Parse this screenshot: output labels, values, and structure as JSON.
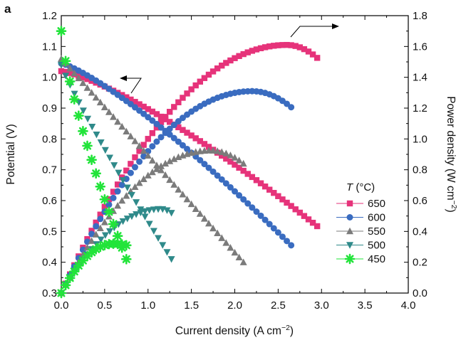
{
  "panel_label": "a",
  "chart_data": {
    "type": "scatter",
    "xlabel": "Current density (A cm−2)",
    "xlabel_base": "Current density (A cm",
    "xlabel_sup": "−2",
    "xlabel_close": ")",
    "ylabel": "Potential (V)",
    "y2label": "Power density (W cm−2)",
    "y2label_base": "Power density (W cm",
    "y2label_sup": "−2",
    "y2label_close": ")",
    "xlim": [
      0.0,
      4.0
    ],
    "ylim": [
      0.3,
      1.2
    ],
    "y2lim": [
      0.0,
      1.8
    ],
    "x_ticks": [
      "0.0",
      "0.5",
      "1.0",
      "1.5",
      "2.0",
      "2.5",
      "3.0",
      "3.5",
      "4.0"
    ],
    "y_ticks": [
      "0.3",
      "0.4",
      "0.5",
      "0.6",
      "0.7",
      "0.8",
      "0.9",
      "1.0",
      "1.1",
      "1.2"
    ],
    "y2_ticks": [
      "0.0",
      "0.2",
      "0.4",
      "0.6",
      "0.8",
      "1.0",
      "1.2",
      "1.4",
      "1.6",
      "1.8"
    ],
    "grid": false,
    "legend_title_var": "T",
    "legend_title_unit": " (°C)",
    "legend_position": "right",
    "series": [
      {
        "name": "650",
        "color": "#e6337a",
        "marker": "square",
        "iv": {
          "x_max": 2.95,
          "v_start": 1.02,
          "v_end": 0.517,
          "shape": 1.3
        },
        "power": {
          "x_max": 2.95,
          "p_end": 1.526,
          "peak_x": 2.6,
          "peak_p": 1.61
        }
      },
      {
        "name": "600",
        "color": "#3a6cc0",
        "marker": "circle",
        "iv": {
          "x_max": 2.65,
          "v_start": 1.045,
          "v_end": 0.455,
          "shape": 1.25
        },
        "power": {
          "x_max": 2.65,
          "p_end": 1.206,
          "peak_x": 2.2,
          "peak_p": 1.31
        }
      },
      {
        "name": "550",
        "color": "#7b7b7b",
        "marker": "triangle-up",
        "iv": {
          "x_max": 2.1,
          "v_start": 1.06,
          "v_end": 0.4,
          "shape": 1.0
        },
        "power": {
          "x_max": 2.1,
          "p_end": 0.84,
          "peak_x": 1.72,
          "peak_p": 0.925
        }
      },
      {
        "name": "500",
        "color": "#2f8a8a",
        "marker": "triangle-down",
        "iv": {
          "x_max": 1.27,
          "v_start": 1.04,
          "v_end": 0.41,
          "shape": 0.9
        },
        "power": {
          "x_max": 1.27,
          "p_end": 0.52,
          "peak_x": 1.15,
          "peak_p": 0.545
        }
      },
      {
        "name": "450",
        "color": "#22e43a",
        "marker": "star",
        "iv": {
          "x_max": 0.75,
          "v_start": 1.15,
          "v_end": 0.41,
          "shape": 0.75
        },
        "power": {
          "x_max": 0.75,
          "p_end": 0.31,
          "peak_x": 0.6,
          "peak_p": 0.32
        }
      }
    ]
  }
}
